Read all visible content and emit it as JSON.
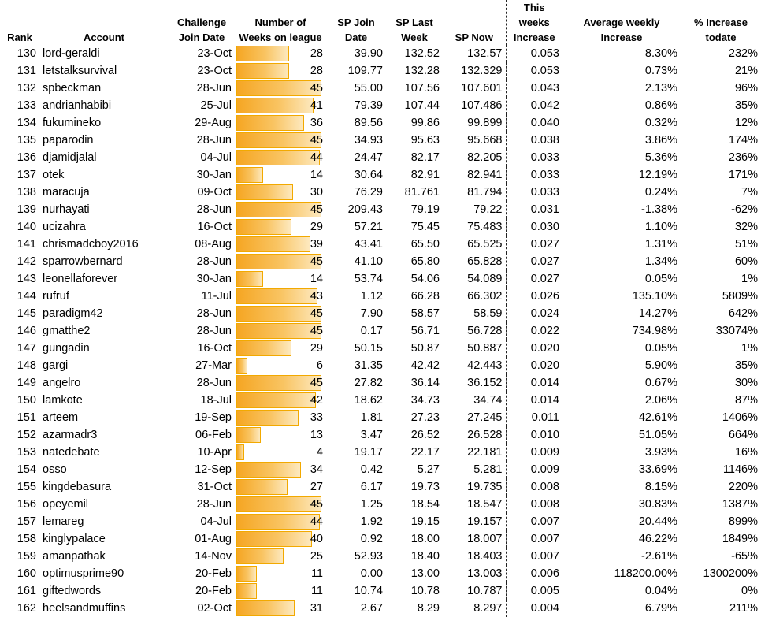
{
  "headers": {
    "rank": "Rank",
    "account": "Account",
    "join_date": [
      "Challenge",
      "Join Date"
    ],
    "weeks": [
      "Number of",
      "Weeks on league"
    ],
    "sp_join": [
      "SP Join",
      "Date"
    ],
    "sp_last": [
      "SP Last",
      "Week"
    ],
    "sp_now": "SP Now",
    "this_weeks": [
      "This weeks",
      "Increase"
    ],
    "avg_weekly": [
      "Average weekly",
      "Increase"
    ],
    "pct_increase": [
      "% Increase",
      "todate"
    ]
  },
  "bar_max": 45,
  "colors": {
    "bar": "#f5a623",
    "bar_border": "#f2a900"
  },
  "rows": [
    {
      "rank": "130",
      "account": "lord-geraldi",
      "join_date": "23-Oct",
      "weeks": 28,
      "sp_join": "39.90",
      "sp_last": "132.52",
      "sp_now": "132.57",
      "this_weeks": "0.053",
      "avg_weekly": "8.30%",
      "pct": "232%"
    },
    {
      "rank": "131",
      "account": "letstalksurvival",
      "join_date": "23-Oct",
      "weeks": 28,
      "sp_join": "109.77",
      "sp_last": "132.28",
      "sp_now": "132.329",
      "this_weeks": "0.053",
      "avg_weekly": "0.73%",
      "pct": "21%"
    },
    {
      "rank": "132",
      "account": "spbeckman",
      "join_date": "28-Jun",
      "weeks": 45,
      "sp_join": "55.00",
      "sp_last": "107.56",
      "sp_now": "107.601",
      "this_weeks": "0.043",
      "avg_weekly": "2.13%",
      "pct": "96%"
    },
    {
      "rank": "133",
      "account": "andrianhabibi",
      "join_date": "25-Jul",
      "weeks": 41,
      "sp_join": "79.39",
      "sp_last": "107.44",
      "sp_now": "107.486",
      "this_weeks": "0.042",
      "avg_weekly": "0.86%",
      "pct": "35%"
    },
    {
      "rank": "134",
      "account": "fukumineko",
      "join_date": "29-Aug",
      "weeks": 36,
      "sp_join": "89.56",
      "sp_last": "99.86",
      "sp_now": "99.899",
      "this_weeks": "0.040",
      "avg_weekly": "0.32%",
      "pct": "12%"
    },
    {
      "rank": "135",
      "account": "paparodin",
      "join_date": "28-Jun",
      "weeks": 45,
      "sp_join": "34.93",
      "sp_last": "95.63",
      "sp_now": "95.668",
      "this_weeks": "0.038",
      "avg_weekly": "3.86%",
      "pct": "174%"
    },
    {
      "rank": "136",
      "account": "djamidjalal",
      "join_date": "04-Jul",
      "weeks": 44,
      "sp_join": "24.47",
      "sp_last": "82.17",
      "sp_now": "82.205",
      "this_weeks": "0.033",
      "avg_weekly": "5.36%",
      "pct": "236%"
    },
    {
      "rank": "137",
      "account": "otek",
      "join_date": "30-Jan",
      "weeks": 14,
      "sp_join": "30.64",
      "sp_last": "82.91",
      "sp_now": "82.941",
      "this_weeks": "0.033",
      "avg_weekly": "12.19%",
      "pct": "171%"
    },
    {
      "rank": "138",
      "account": "maracuja",
      "join_date": "09-Oct",
      "weeks": 30,
      "sp_join": "76.29",
      "sp_last": "81.761",
      "sp_now": "81.794",
      "this_weeks": "0.033",
      "avg_weekly": "0.24%",
      "pct": "7%"
    },
    {
      "rank": "139",
      "account": "nurhayati",
      "join_date": "28-Jun",
      "weeks": 45,
      "sp_join": "209.43",
      "sp_last": "79.19",
      "sp_now": "79.22",
      "this_weeks": "0.031",
      "avg_weekly": "-1.38%",
      "pct": "-62%"
    },
    {
      "rank": "140",
      "account": "ucizahra",
      "join_date": "16-Oct",
      "weeks": 29,
      "sp_join": "57.21",
      "sp_last": "75.45",
      "sp_now": "75.483",
      "this_weeks": "0.030",
      "avg_weekly": "1.10%",
      "pct": "32%"
    },
    {
      "rank": "141",
      "account": "chrismadcboy2016",
      "join_date": "08-Aug",
      "weeks": 39,
      "sp_join": "43.41",
      "sp_last": "65.50",
      "sp_now": "65.525",
      "this_weeks": "0.027",
      "avg_weekly": "1.31%",
      "pct": "51%"
    },
    {
      "rank": "142",
      "account": "sparrowbernard",
      "join_date": "28-Jun",
      "weeks": 45,
      "sp_join": "41.10",
      "sp_last": "65.80",
      "sp_now": "65.828",
      "this_weeks": "0.027",
      "avg_weekly": "1.34%",
      "pct": "60%"
    },
    {
      "rank": "143",
      "account": "leonellaforever",
      "join_date": "30-Jan",
      "weeks": 14,
      "sp_join": "53.74",
      "sp_last": "54.06",
      "sp_now": "54.089",
      "this_weeks": "0.027",
      "avg_weekly": "0.05%",
      "pct": "1%"
    },
    {
      "rank": "144",
      "account": "rufruf",
      "join_date": "11-Jul",
      "weeks": 43,
      "sp_join": "1.12",
      "sp_last": "66.28",
      "sp_now": "66.302",
      "this_weeks": "0.026",
      "avg_weekly": "135.10%",
      "pct": "5809%"
    },
    {
      "rank": "145",
      "account": "paradigm42",
      "join_date": "28-Jun",
      "weeks": 45,
      "sp_join": "7.90",
      "sp_last": "58.57",
      "sp_now": "58.59",
      "this_weeks": "0.024",
      "avg_weekly": "14.27%",
      "pct": "642%"
    },
    {
      "rank": "146",
      "account": "gmatthe2",
      "join_date": "28-Jun",
      "weeks": 45,
      "sp_join": "0.17",
      "sp_last": "56.71",
      "sp_now": "56.728",
      "this_weeks": "0.022",
      "avg_weekly": "734.98%",
      "pct": "33074%"
    },
    {
      "rank": "147",
      "account": "gungadin",
      "join_date": "16-Oct",
      "weeks": 29,
      "sp_join": "50.15",
      "sp_last": "50.87",
      "sp_now": "50.887",
      "this_weeks": "0.020",
      "avg_weekly": "0.05%",
      "pct": "1%"
    },
    {
      "rank": "148",
      "account": "gargi",
      "join_date": "27-Mar",
      "weeks": 6,
      "sp_join": "31.35",
      "sp_last": "42.42",
      "sp_now": "42.443",
      "this_weeks": "0.020",
      "avg_weekly": "5.90%",
      "pct": "35%"
    },
    {
      "rank": "149",
      "account": "angelro",
      "join_date": "28-Jun",
      "weeks": 45,
      "sp_join": "27.82",
      "sp_last": "36.14",
      "sp_now": "36.152",
      "this_weeks": "0.014",
      "avg_weekly": "0.67%",
      "pct": "30%"
    },
    {
      "rank": "150",
      "account": "lamkote",
      "join_date": "18-Jul",
      "weeks": 42,
      "sp_join": "18.62",
      "sp_last": "34.73",
      "sp_now": "34.74",
      "this_weeks": "0.014",
      "avg_weekly": "2.06%",
      "pct": "87%"
    },
    {
      "rank": "151",
      "account": "arteem",
      "join_date": "19-Sep",
      "weeks": 33,
      "sp_join": "1.81",
      "sp_last": "27.23",
      "sp_now": "27.245",
      "this_weeks": "0.011",
      "avg_weekly": "42.61%",
      "pct": "1406%"
    },
    {
      "rank": "152",
      "account": "azarmadr3",
      "join_date": "06-Feb",
      "weeks": 13,
      "sp_join": "3.47",
      "sp_last": "26.52",
      "sp_now": "26.528",
      "this_weeks": "0.010",
      "avg_weekly": "51.05%",
      "pct": "664%"
    },
    {
      "rank": "153",
      "account": "natedebate",
      "join_date": "10-Apr",
      "weeks": 4,
      "sp_join": "19.17",
      "sp_last": "22.17",
      "sp_now": "22.181",
      "this_weeks": "0.009",
      "avg_weekly": "3.93%",
      "pct": "16%"
    },
    {
      "rank": "154",
      "account": "osso",
      "join_date": "12-Sep",
      "weeks": 34,
      "sp_join": "0.42",
      "sp_last": "5.27",
      "sp_now": "5.281",
      "this_weeks": "0.009",
      "avg_weekly": "33.69%",
      "pct": "1146%"
    },
    {
      "rank": "155",
      "account": "kingdebasura",
      "join_date": "31-Oct",
      "weeks": 27,
      "sp_join": "6.17",
      "sp_last": "19.73",
      "sp_now": "19.735",
      "this_weeks": "0.008",
      "avg_weekly": "8.15%",
      "pct": "220%"
    },
    {
      "rank": "156",
      "account": "opeyemil",
      "join_date": "28-Jun",
      "weeks": 45,
      "sp_join": "1.25",
      "sp_last": "18.54",
      "sp_now": "18.547",
      "this_weeks": "0.008",
      "avg_weekly": "30.83%",
      "pct": "1387%"
    },
    {
      "rank": "157",
      "account": "lemareg",
      "join_date": "04-Jul",
      "weeks": 44,
      "sp_join": "1.92",
      "sp_last": "19.15",
      "sp_now": "19.157",
      "this_weeks": "0.007",
      "avg_weekly": "20.44%",
      "pct": "899%"
    },
    {
      "rank": "158",
      "account": "kinglypalace",
      "join_date": "01-Aug",
      "weeks": 40,
      "sp_join": "0.92",
      "sp_last": "18.00",
      "sp_now": "18.007",
      "this_weeks": "0.007",
      "avg_weekly": "46.22%",
      "pct": "1849%"
    },
    {
      "rank": "159",
      "account": "amanpathak",
      "join_date": "14-Nov",
      "weeks": 25,
      "sp_join": "52.93",
      "sp_last": "18.40",
      "sp_now": "18.403",
      "this_weeks": "0.007",
      "avg_weekly": "-2.61%",
      "pct": "-65%"
    },
    {
      "rank": "160",
      "account": "optimusprime90",
      "join_date": "20-Feb",
      "weeks": 11,
      "sp_join": "0.00",
      "sp_last": "13.00",
      "sp_now": "13.003",
      "this_weeks": "0.006",
      "avg_weekly": "118200.00%",
      "pct": "1300200%"
    },
    {
      "rank": "161",
      "account": "giftedwords",
      "join_date": "20-Feb",
      "weeks": 11,
      "sp_join": "10.74",
      "sp_last": "10.78",
      "sp_now": "10.787",
      "this_weeks": "0.005",
      "avg_weekly": "0.04%",
      "pct": "0%"
    },
    {
      "rank": "162",
      "account": "heelsandmuffins",
      "join_date": "02-Oct",
      "weeks": 31,
      "sp_join": "2.67",
      "sp_last": "8.29",
      "sp_now": "8.297",
      "this_weeks": "0.004",
      "avg_weekly": "6.79%",
      "pct": "211%"
    }
  ]
}
